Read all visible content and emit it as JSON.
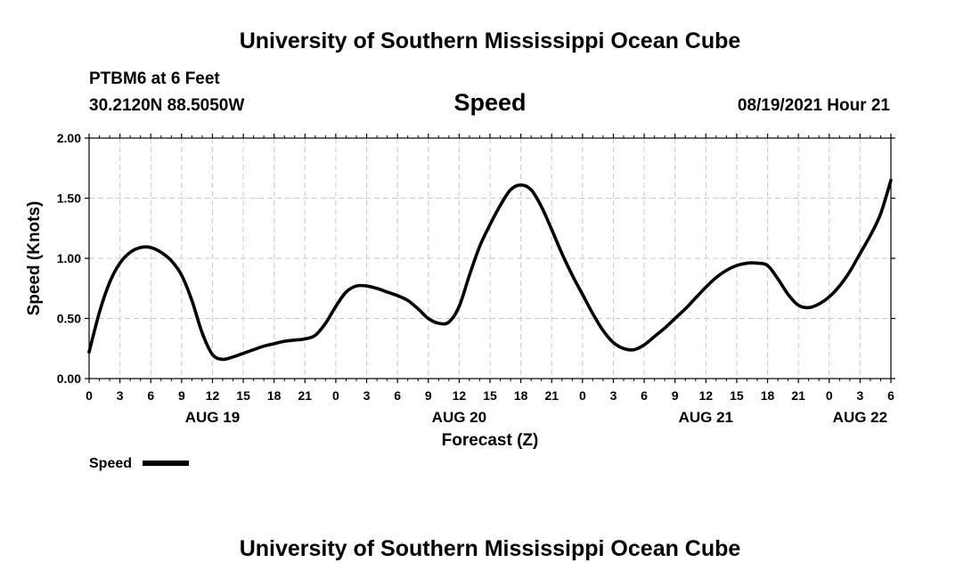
{
  "header": {
    "title_top": "University of Southern Mississippi Ocean Cube",
    "station": "PTBM6 at 6 Feet",
    "coords": "30.2120N  88.5050W",
    "variable": "Speed",
    "datetime": "08/19/2021 Hour 21",
    "title_bottom": "University of Southern Mississippi Ocean Cube"
  },
  "legend": {
    "label": "Speed"
  },
  "colors": {
    "line": "#000000",
    "grid": "#c8c8c8",
    "background": "#ffffff"
  },
  "chart_data": {
    "type": "line",
    "title": "Speed",
    "xlabel": "Forecast (Z)",
    "ylabel": "Speed (Knots)",
    "ylim": [
      0,
      2
    ],
    "xlim": [
      0,
      78
    ],
    "grid": true,
    "y_ticks": [
      {
        "value": 0,
        "label": "0.00"
      },
      {
        "value": 0.5,
        "label": "0.50"
      },
      {
        "value": 1,
        "label": "1.00"
      },
      {
        "value": 1.5,
        "label": "1.50"
      },
      {
        "value": 2,
        "label": "2.00"
      }
    ],
    "x_ticks": [
      {
        "value": 0,
        "label": "0"
      },
      {
        "value": 3,
        "label": "3"
      },
      {
        "value": 6,
        "label": "6"
      },
      {
        "value": 9,
        "label": "9"
      },
      {
        "value": 12,
        "label": "12"
      },
      {
        "value": 15,
        "label": "15"
      },
      {
        "value": 18,
        "label": "18"
      },
      {
        "value": 21,
        "label": "21"
      },
      {
        "value": 24,
        "label": "0"
      },
      {
        "value": 27,
        "label": "3"
      },
      {
        "value": 30,
        "label": "6"
      },
      {
        "value": 33,
        "label": "9"
      },
      {
        "value": 36,
        "label": "12"
      },
      {
        "value": 39,
        "label": "15"
      },
      {
        "value": 42,
        "label": "18"
      },
      {
        "value": 45,
        "label": "21"
      },
      {
        "value": 48,
        "label": "0"
      },
      {
        "value": 51,
        "label": "3"
      },
      {
        "value": 54,
        "label": "6"
      },
      {
        "value": 57,
        "label": "9"
      },
      {
        "value": 60,
        "label": "12"
      },
      {
        "value": 63,
        "label": "15"
      },
      {
        "value": 66,
        "label": "18"
      },
      {
        "value": 69,
        "label": "21"
      },
      {
        "value": 72,
        "label": "0"
      },
      {
        "value": 75,
        "label": "3"
      },
      {
        "value": 78,
        "label": "6"
      }
    ],
    "date_labels": [
      {
        "value": 12,
        "label": "AUG 19"
      },
      {
        "value": 36,
        "label": "AUG 20"
      },
      {
        "value": 60,
        "label": "AUG 21"
      },
      {
        "value": 75,
        "label": "AUG 22"
      }
    ],
    "series": [
      {
        "name": "Speed",
        "x": [
          0,
          1,
          2,
          3,
          4,
          5,
          6,
          7,
          8,
          9,
          10,
          11,
          12,
          13,
          14,
          15,
          16,
          17,
          18,
          19,
          20,
          21,
          22,
          23,
          24,
          25,
          26,
          27,
          28,
          29,
          30,
          31,
          32,
          33,
          34,
          35,
          36,
          37,
          38,
          39,
          40,
          41,
          42,
          43,
          44,
          45,
          46,
          47,
          48,
          49,
          50,
          51,
          52,
          53,
          54,
          55,
          56,
          57,
          58,
          59,
          60,
          61,
          62,
          63,
          64,
          65,
          66,
          67,
          68,
          69,
          70,
          71,
          72,
          73,
          74,
          75,
          76,
          77,
          78
        ],
        "values": [
          0.22,
          0.55,
          0.8,
          0.96,
          1.05,
          1.09,
          1.09,
          1.05,
          0.98,
          0.86,
          0.65,
          0.38,
          0.2,
          0.16,
          0.18,
          0.21,
          0.24,
          0.27,
          0.29,
          0.31,
          0.32,
          0.33,
          0.36,
          0.46,
          0.6,
          0.72,
          0.77,
          0.77,
          0.75,
          0.72,
          0.69,
          0.65,
          0.58,
          0.5,
          0.46,
          0.47,
          0.6,
          0.86,
          1.1,
          1.28,
          1.44,
          1.57,
          1.61,
          1.57,
          1.43,
          1.24,
          1.04,
          0.86,
          0.7,
          0.54,
          0.4,
          0.3,
          0.25,
          0.24,
          0.28,
          0.35,
          0.42,
          0.5,
          0.58,
          0.67,
          0.76,
          0.84,
          0.9,
          0.94,
          0.96,
          0.96,
          0.94,
          0.83,
          0.7,
          0.61,
          0.59,
          0.62,
          0.68,
          0.77,
          0.89,
          1.04,
          1.19,
          1.37,
          1.65
        ]
      }
    ]
  }
}
